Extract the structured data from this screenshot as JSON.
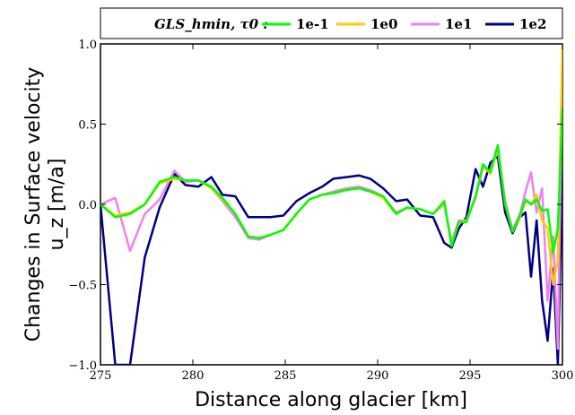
{
  "chart_data": {
    "type": "line",
    "xlabel": "Distance along glacier [km]",
    "ylabel_line1": "Changes in Surface velocity",
    "ylabel_line2": "u_z [m/a]",
    "xlim": [
      275,
      300
    ],
    "ylim": [
      -1.0,
      1.0
    ],
    "x_ticks": [
      275,
      280,
      285,
      290,
      295,
      300
    ],
    "y_ticks": [
      -1.0,
      -0.5,
      0.0,
      0.5,
      1.0
    ],
    "x_tick_labels": [
      "275",
      "280",
      "285",
      "290",
      "295",
      "300"
    ],
    "y_tick_labels": [
      "−1.0",
      "−0.5",
      "0.0",
      "0.5",
      "1.0"
    ],
    "grid": false,
    "legend": {
      "placement": "top",
      "title": "GLS_hmin, τ0 :"
    },
    "series": [
      {
        "name": "1e-1",
        "color": "#00ff00",
        "x": [
          275.0,
          275.8,
          276.6,
          277.4,
          278.2,
          279.0,
          279.6,
          280.3,
          281.0,
          281.6,
          282.3,
          283.0,
          283.6,
          284.2,
          284.9,
          285.6,
          286.3,
          287.0,
          287.6,
          288.3,
          289.0,
          289.6,
          290.3,
          291.0,
          291.6,
          292.3,
          293.0,
          293.6,
          294.0,
          294.4,
          294.8,
          295.3,
          295.7,
          296.1,
          296.5,
          296.9,
          297.3,
          297.7,
          298.0,
          298.3,
          298.6,
          298.9,
          299.2,
          299.5,
          299.75,
          300.0
        ],
        "y": [
          0.0,
          -0.08,
          -0.06,
          0.0,
          0.14,
          0.17,
          0.15,
          0.15,
          0.11,
          0.04,
          -0.06,
          -0.2,
          -0.21,
          -0.19,
          -0.16,
          -0.06,
          0.03,
          0.06,
          0.07,
          0.09,
          0.1,
          0.08,
          0.05,
          -0.06,
          -0.02,
          -0.03,
          -0.06,
          0.02,
          -0.26,
          -0.11,
          -0.11,
          0.05,
          0.25,
          0.2,
          0.37,
          0.0,
          -0.17,
          -0.07,
          0.03,
          0.0,
          0.03,
          -0.04,
          -0.03,
          -0.3,
          -0.15,
          0.6
        ]
      },
      {
        "name": "1e0",
        "color": "#ffcc00",
        "x": [
          275.0,
          275.8,
          276.6,
          277.4,
          278.2,
          279.0,
          279.6,
          280.3,
          281.0,
          281.6,
          282.3,
          283.0,
          283.6,
          284.2,
          284.9,
          285.6,
          286.3,
          287.0,
          287.6,
          288.3,
          289.0,
          289.6,
          290.3,
          291.0,
          291.6,
          292.3,
          293.0,
          293.6,
          294.0,
          294.4,
          294.8,
          295.3,
          295.7,
          296.1,
          296.5,
          296.9,
          297.3,
          297.7,
          298.0,
          298.3,
          298.6,
          298.9,
          299.2,
          299.5,
          299.75,
          300.0
        ],
        "y": [
          0.0,
          -0.07,
          -0.05,
          0.0,
          0.13,
          0.16,
          0.15,
          0.15,
          0.1,
          0.03,
          -0.06,
          -0.2,
          -0.21,
          -0.19,
          -0.16,
          -0.06,
          0.03,
          0.06,
          0.07,
          0.09,
          0.1,
          0.08,
          0.04,
          -0.06,
          -0.02,
          -0.03,
          -0.06,
          0.01,
          -0.25,
          -0.11,
          -0.1,
          0.05,
          0.24,
          0.19,
          0.36,
          0.0,
          -0.17,
          -0.08,
          0.02,
          0.0,
          0.06,
          -0.1,
          -0.15,
          -0.5,
          -0.35,
          1.0
        ]
      },
      {
        "name": "1e1",
        "color": "#ee82ee",
        "x": [
          275.0,
          275.8,
          276.6,
          277.4,
          278.2,
          279.0,
          279.6,
          280.3,
          281.0,
          281.6,
          282.3,
          283.0,
          283.6,
          284.2,
          284.9,
          285.6,
          286.3,
          287.0,
          287.6,
          288.3,
          289.0,
          289.6,
          290.3,
          291.0,
          291.6,
          292.3,
          293.0,
          293.6,
          294.0,
          294.4,
          294.8,
          295.3,
          295.7,
          296.1,
          296.5,
          296.9,
          297.3,
          297.7,
          298.0,
          298.3,
          298.6,
          298.9,
          299.2,
          299.5,
          299.75,
          300.0
        ],
        "y": [
          0.0,
          0.04,
          -0.29,
          -0.06,
          0.03,
          0.21,
          0.14,
          0.15,
          0.1,
          0.02,
          -0.08,
          -0.21,
          -0.22,
          -0.19,
          -0.16,
          -0.06,
          0.03,
          0.06,
          0.08,
          0.1,
          0.11,
          0.09,
          0.05,
          -0.05,
          -0.02,
          -0.03,
          -0.06,
          0.0,
          -0.23,
          -0.1,
          -0.1,
          0.04,
          0.23,
          0.2,
          0.34,
          0.02,
          -0.16,
          -0.06,
          0.08,
          0.2,
          -0.05,
          0.1,
          -0.6,
          -0.2,
          -0.9,
          0.9
        ]
      },
      {
        "name": "1e2",
        "color": "#000080",
        "x": [
          275.0,
          275.8,
          276.6,
          277.4,
          278.2,
          279.0,
          279.6,
          280.3,
          281.0,
          281.6,
          282.3,
          283.0,
          283.6,
          284.2,
          284.9,
          285.6,
          286.3,
          287.0,
          287.6,
          288.3,
          289.0,
          289.6,
          290.3,
          291.0,
          291.6,
          292.3,
          293.0,
          293.6,
          294.0,
          294.4,
          294.8,
          295.3,
          295.7,
          296.1,
          296.5,
          296.9,
          297.3,
          297.7,
          298.0,
          298.3,
          298.6,
          298.9,
          299.2,
          299.5,
          299.75,
          300.0
        ],
        "y": [
          0.0,
          -1.0,
          -1.0,
          -0.33,
          -0.02,
          0.19,
          0.12,
          0.11,
          0.17,
          0.06,
          0.05,
          -0.08,
          -0.08,
          -0.08,
          -0.07,
          0.02,
          0.07,
          0.11,
          0.16,
          0.17,
          0.18,
          0.16,
          0.1,
          0.02,
          0.03,
          -0.07,
          -0.08,
          -0.24,
          -0.27,
          -0.15,
          -0.08,
          0.22,
          0.11,
          0.26,
          0.3,
          -0.05,
          -0.18,
          -0.08,
          -0.05,
          -0.45,
          -0.1,
          -0.6,
          -0.85,
          -0.4,
          -1.0,
          0.2
        ]
      }
    ]
  }
}
